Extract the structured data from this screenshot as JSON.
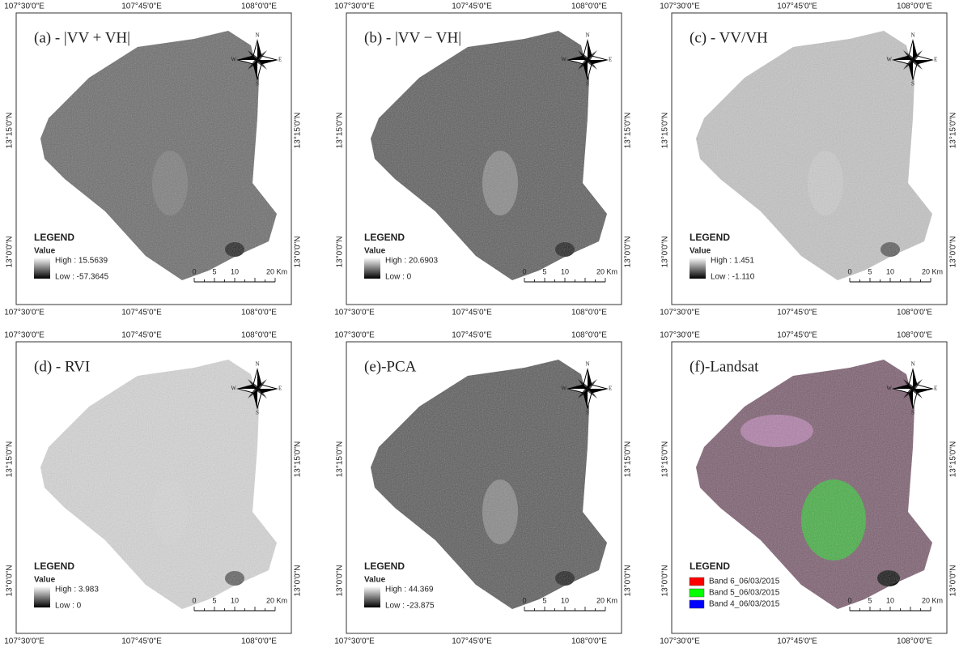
{
  "figure": {
    "coordinates": {
      "lon": [
        "107°30'0\"E",
        "107°45'0\"E",
        "108°0'0\"E"
      ],
      "lat": [
        "13°15'0\"N",
        "13°0'0\"N"
      ]
    },
    "compass": {
      "n": "N",
      "e": "E",
      "s": "S",
      "w": "W"
    },
    "legend_title": "LEGEND",
    "value_label": "Value",
    "scale": [
      "0",
      "5",
      "10",
      "20 Km"
    ],
    "panels": [
      {
        "title": "(a) - |VV + VH|",
        "high": "High : 15.5639",
        "low": "Low : -57.3645"
      },
      {
        "title": "(b) - |VV − VH|",
        "high": "High : 20.6903",
        "low": "Low : 0"
      },
      {
        "title": "(c) - VV/VH",
        "high": "High : 1.451",
        "low": "Low : -1.110"
      },
      {
        "title": "(d) - RVI",
        "high": "High : 3.983",
        "low": "Low : 0"
      },
      {
        "title": "(e)-PCA",
        "high": "High : 44.369",
        "low": "Low : -23.875"
      },
      {
        "title": "(f)-Landsat",
        "bands": [
          {
            "label": "Band 6_06/03/2015",
            "color": "#ff0000"
          },
          {
            "label": "Band 5_06/03/2015",
            "color": "#00ff00"
          },
          {
            "label": "Band 4_06/03/2015",
            "color": "#0000ff"
          }
        ]
      }
    ]
  }
}
